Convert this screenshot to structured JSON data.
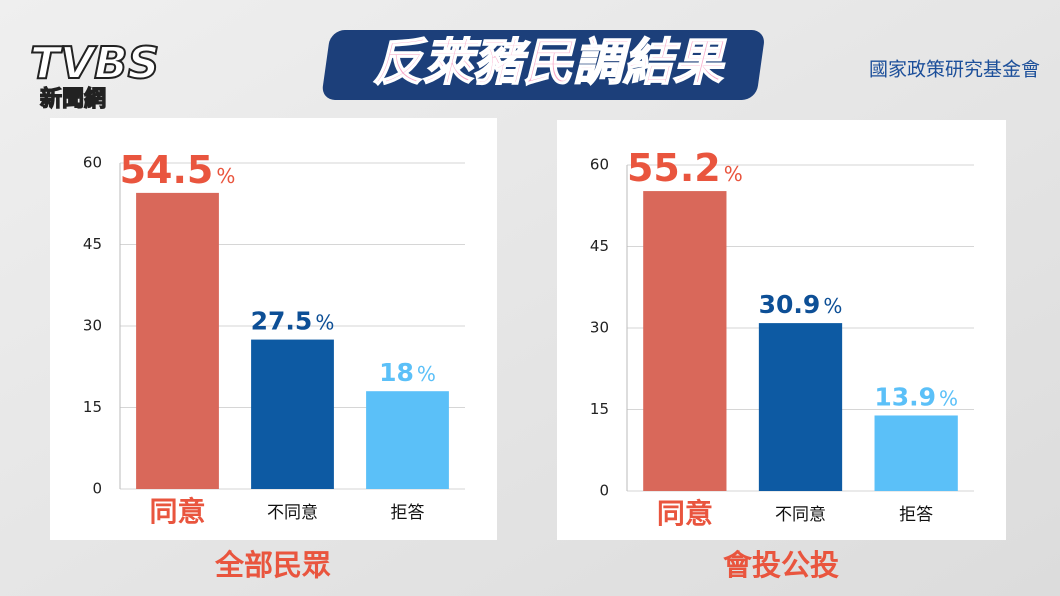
{
  "header": {
    "title": "反萊豬民調結果",
    "source": "國家政策研究基金會"
  },
  "logo": {
    "mark": "TVBS",
    "text": "新聞網"
  },
  "chart_data": [
    {
      "type": "bar",
      "subtitle": "全部民眾",
      "categories": [
        "同意",
        "不同意",
        "拒答"
      ],
      "values": [
        54.5,
        27.5,
        18
      ],
      "unit": "%",
      "colors": [
        "#d9685a",
        "#0d5aa3",
        "#5bc0f8"
      ],
      "label_colors": [
        "#e9553e",
        "#0d4f96",
        "#5bc0f8"
      ],
      "ylim": [
        0,
        60
      ],
      "yticks": [
        0,
        15,
        30,
        45,
        60
      ],
      "grid": true
    },
    {
      "type": "bar",
      "subtitle": "會投公投",
      "categories": [
        "同意",
        "不同意",
        "拒答"
      ],
      "values": [
        55.2,
        30.9,
        13.9
      ],
      "unit": "%",
      "colors": [
        "#d9685a",
        "#0d5aa3",
        "#5bc0f8"
      ],
      "label_colors": [
        "#e9553e",
        "#0d4f96",
        "#5bc0f8"
      ],
      "ylim": [
        0,
        60
      ],
      "yticks": [
        0,
        15,
        30,
        45,
        60
      ],
      "grid": true
    }
  ]
}
